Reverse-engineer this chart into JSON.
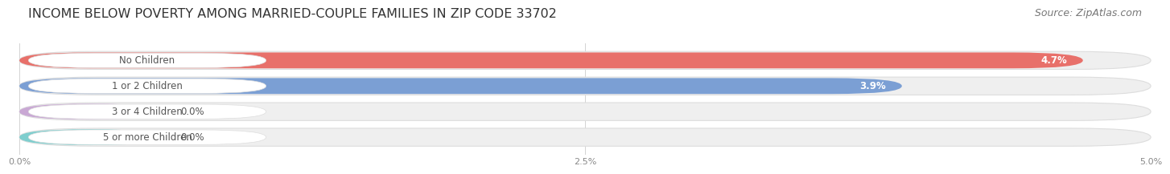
{
  "title": "INCOME BELOW POVERTY AMONG MARRIED-COUPLE FAMILIES IN ZIP CODE 33702",
  "source": "Source: ZipAtlas.com",
  "categories": [
    "No Children",
    "1 or 2 Children",
    "3 or 4 Children",
    "5 or more Children"
  ],
  "values": [
    4.7,
    3.9,
    0.0,
    0.0
  ],
  "bar_colors": [
    "#E8706A",
    "#7B9FD4",
    "#C9A8D4",
    "#7ECECE"
  ],
  "value_labels": [
    "4.7%",
    "3.9%",
    "0.0%",
    "0.0%"
  ],
  "xlim": [
    0,
    5.0
  ],
  "xticks": [
    0.0,
    2.5,
    5.0
  ],
  "xtick_labels": [
    "0.0%",
    "2.5%",
    "5.0%"
  ],
  "title_fontsize": 11.5,
  "source_fontsize": 9,
  "bar_label_fontsize": 8.5,
  "value_fontsize": 8.5,
  "background_color": "#FFFFFF",
  "bar_height": 0.62,
  "bar_bg_color": "#EFEFEF",
  "bar_bg_border_color": "#DDDDDD",
  "label_bg_color": "#FFFFFF",
  "label_text_color": "#555555",
  "grid_color": "#CCCCCC",
  "tick_label_color": "#888888"
}
